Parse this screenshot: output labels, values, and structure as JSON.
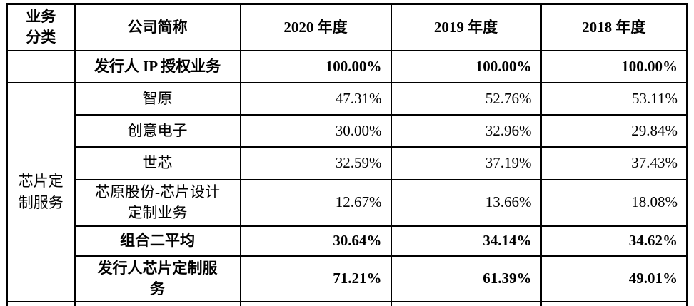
{
  "table": {
    "headers": {
      "group": "业务\n分类",
      "company": "公司简称",
      "y2020": "2020 年度",
      "y2019": "2019 年度",
      "y2018": "2018 年度"
    },
    "group_label": "芯片定制服务",
    "rows": [
      {
        "company": "发行人 IP 授权业务",
        "y2020": "100.00%",
        "y2019": "100.00%",
        "y2018": "100.00%"
      },
      {
        "company": "智原",
        "y2020": "47.31%",
        "y2019": "52.76%",
        "y2018": "53.11%"
      },
      {
        "company": "创意电子",
        "y2020": "30.00%",
        "y2019": "32.96%",
        "y2018": "29.84%"
      },
      {
        "company": "世芯",
        "y2020": "32.59%",
        "y2019": "37.19%",
        "y2018": "37.43%"
      },
      {
        "company": "芯原股份-芯片设计\n定制业务",
        "y2020": "12.67%",
        "y2019": "13.66%",
        "y2018": "18.08%"
      },
      {
        "company": "组合二平均",
        "y2020": "30.64%",
        "y2019": "34.14%",
        "y2018": "34.62%"
      },
      {
        "company": "发行人芯片定制服\n务",
        "y2020": "71.21%",
        "y2019": "61.39%",
        "y2018": "49.01%"
      }
    ],
    "colors": {
      "border": "#000000",
      "text": "#000000",
      "background": "#ffffff"
    }
  }
}
